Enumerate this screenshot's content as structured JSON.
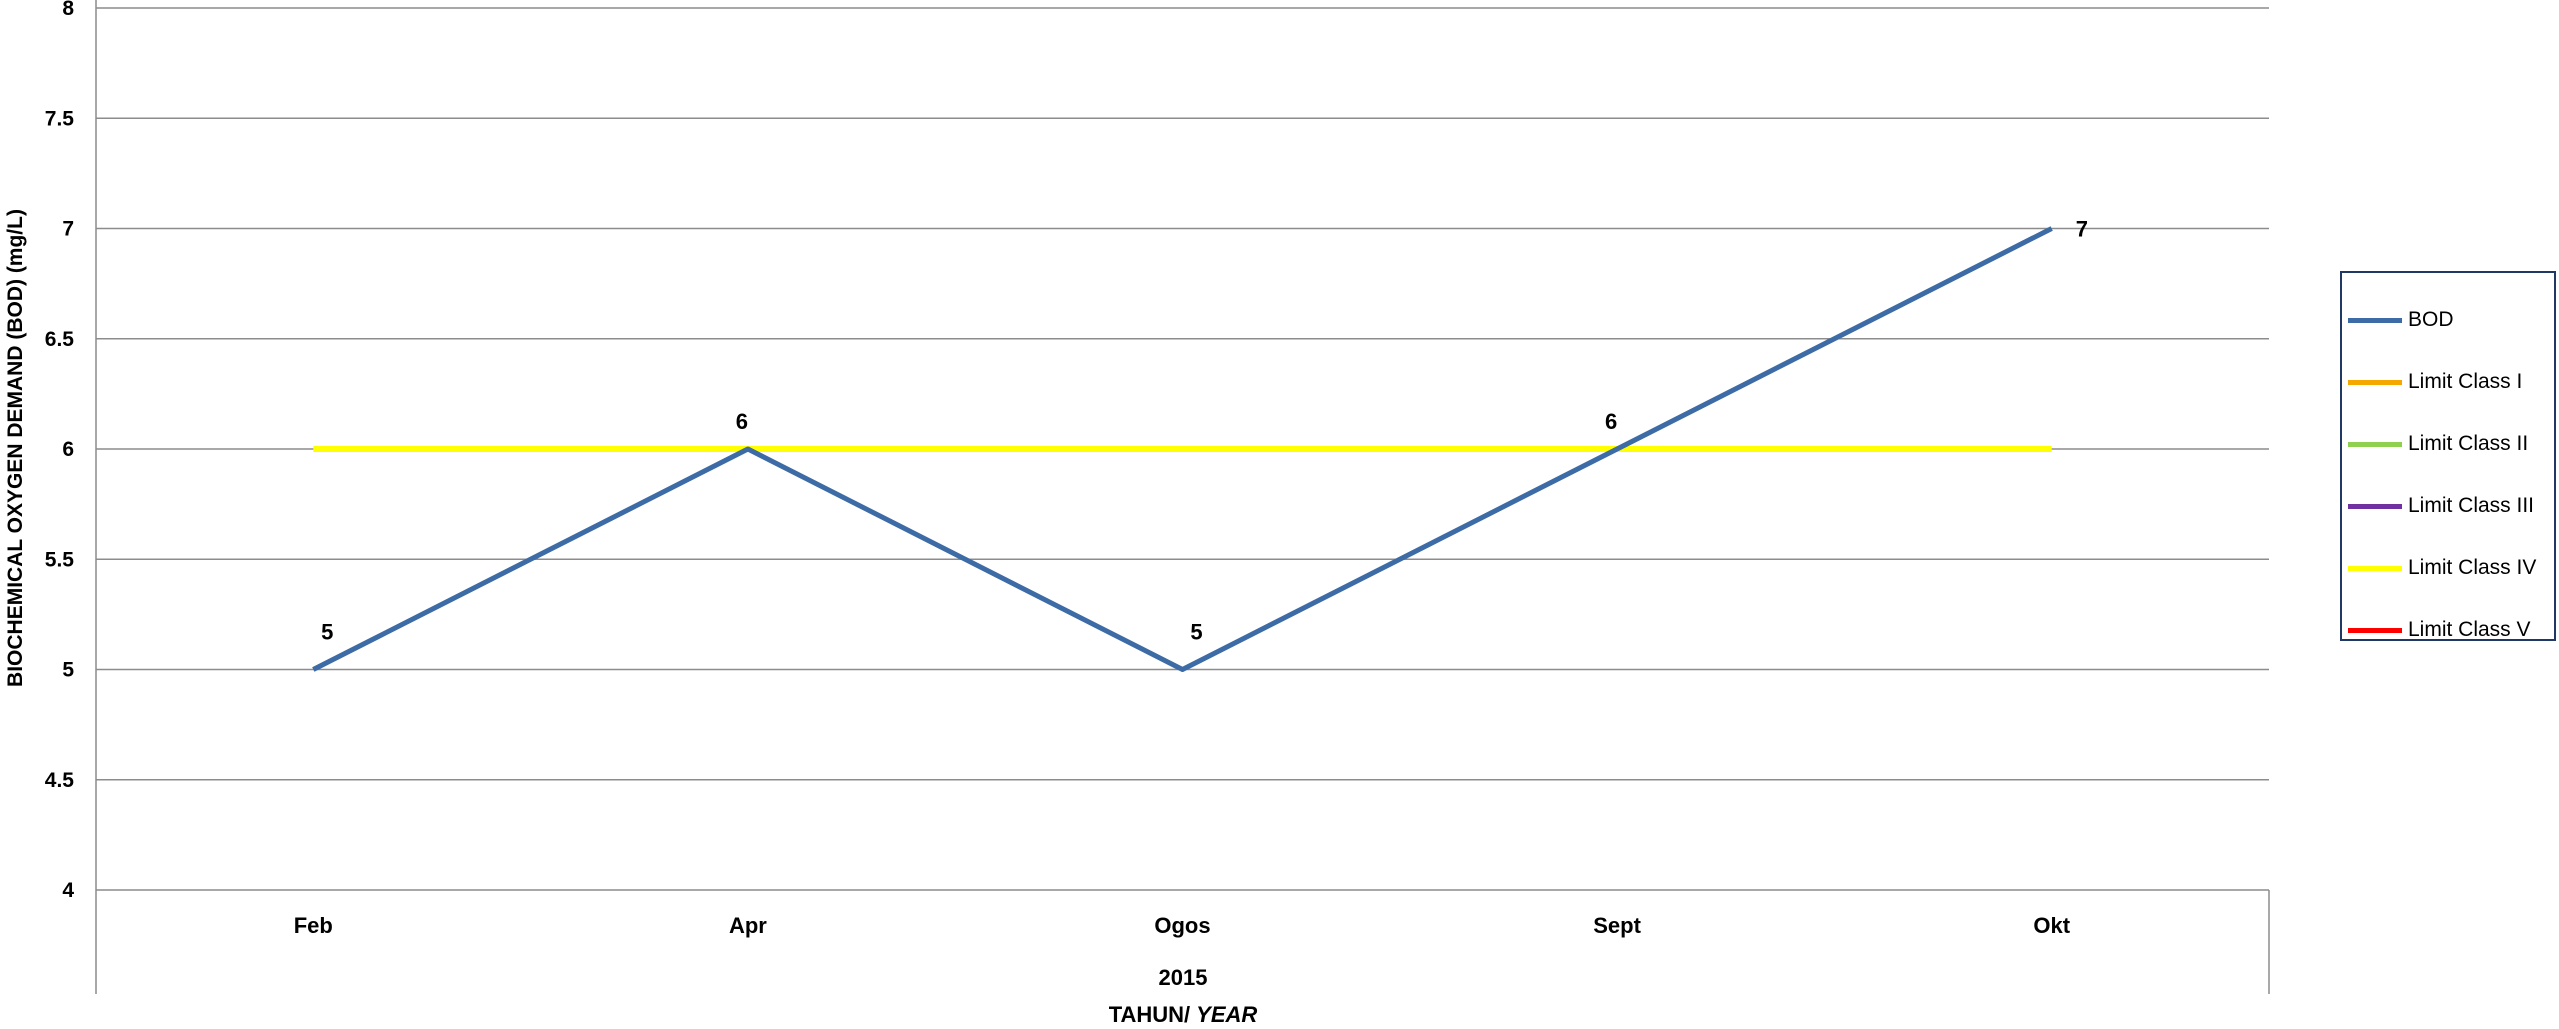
{
  "chart_data": {
    "type": "line",
    "categories": [
      "Feb",
      "Apr",
      "Ogos",
      "Sept",
      "Okt"
    ],
    "category_group_label": "2015",
    "xlabel": "TAHUN/",
    "xlabel_italic": "YEAR",
    "ylabel": "BIOCHEMICAL OXYGEN DEMAND (BOD) (mg/L)",
    "ylim": [
      4,
      8
    ],
    "yticks": [
      "4",
      "4.5",
      "5",
      "5.5",
      "6",
      "6.5",
      "7",
      "7.5",
      "8"
    ],
    "ytick_values": [
      4,
      4.5,
      5,
      5.5,
      6,
      6.5,
      7,
      7.5,
      8
    ],
    "grid": true,
    "legend_position": "right",
    "series": [
      {
        "name": "BOD",
        "values": [
          5,
          6,
          5,
          6,
          7
        ],
        "color": "#3d6ba5",
        "data_labels": [
          "5",
          "6",
          "5",
          "6",
          "7"
        ]
      },
      {
        "name": "Limit Class I",
        "values": [
          null,
          null,
          null,
          null,
          null
        ],
        "color": "#f5a800"
      },
      {
        "name": "Limit Class II",
        "values": [
          null,
          null,
          null,
          null,
          null
        ],
        "color": "#8fd14f"
      },
      {
        "name": "Limit Class III",
        "values": [
          null,
          null,
          null,
          null,
          null
        ],
        "color": "#7030a0"
      },
      {
        "name": "Limit Class IV",
        "values": [
          6,
          6,
          6,
          6,
          6
        ],
        "color": "#ffff00"
      },
      {
        "name": "Limit Class V",
        "values": [
          null,
          null,
          null,
          null,
          null
        ],
        "color": "#ff0000"
      }
    ]
  }
}
